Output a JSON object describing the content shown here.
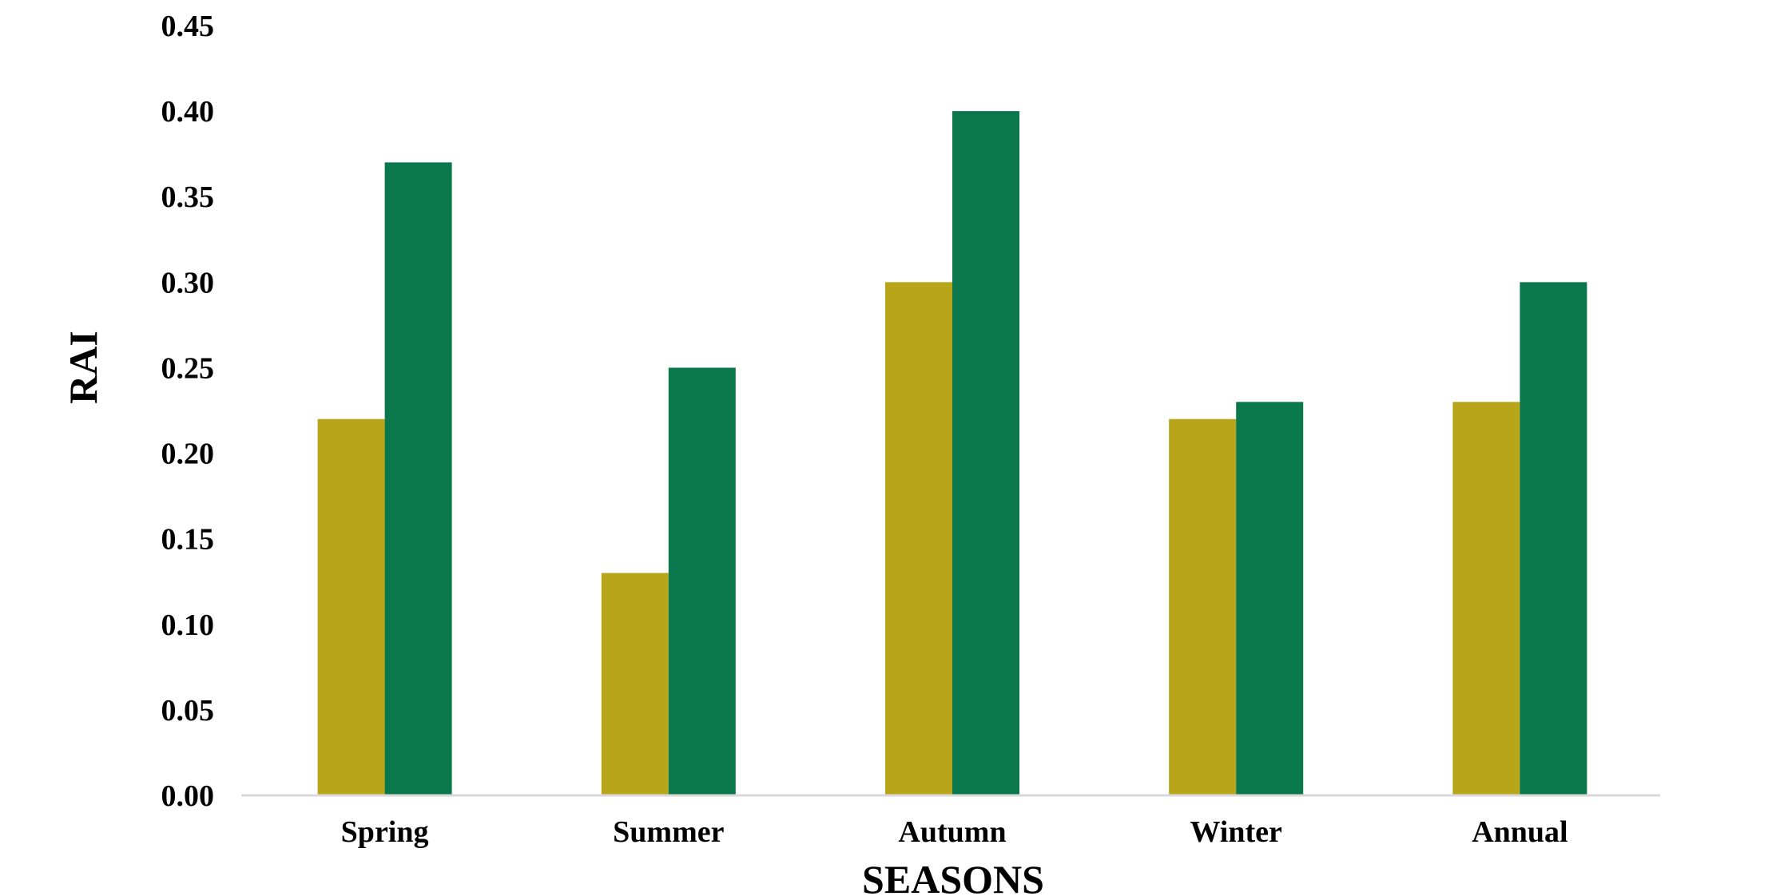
{
  "chart_data": {
    "type": "bar",
    "title": "",
    "xlabel": "SEASONS",
    "ylabel": "RAI",
    "categories": [
      "Spring",
      "Summer",
      "Autumn",
      "Winter",
      "Annual"
    ],
    "series": [
      {
        "values": [
          0.22,
          0.13,
          0.3,
          0.22,
          0.23
        ],
        "color": "#B8A519"
      },
      {
        "values": [
          0.37,
          0.25,
          0.4,
          0.23,
          0.3
        ],
        "color": "#0B774D"
      }
    ],
    "ylim": [
      0,
      0.45
    ],
    "yticks": [
      "0.00",
      "0.05",
      "0.10",
      "0.15",
      "0.20",
      "0.25",
      "0.30",
      "0.35",
      "0.40",
      "0.45"
    ],
    "grid": false,
    "legend": "none",
    "axis_color": "#D9D9D9"
  }
}
